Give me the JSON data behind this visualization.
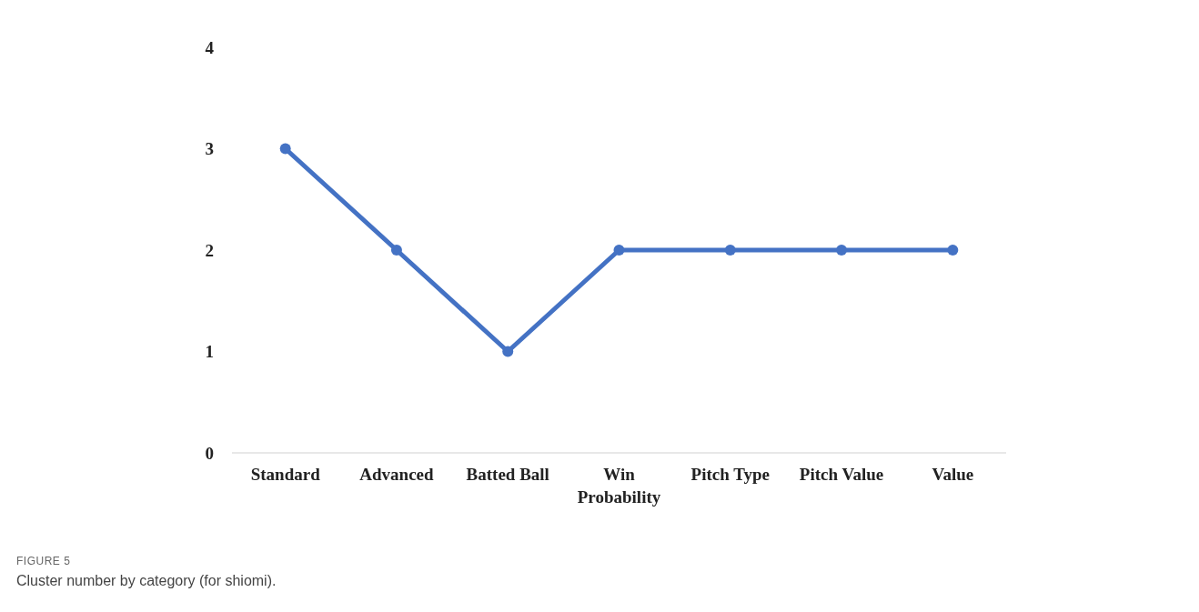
{
  "chart_data": {
    "type": "line",
    "categories": [
      "Standard",
      "Advanced",
      "Batted Ball",
      "Win Probability",
      "Pitch Type",
      "Pitch Value",
      "Value"
    ],
    "series": [
      {
        "color": "#4472c4",
        "values": [
          3,
          2,
          1,
          2,
          2,
          2,
          2
        ]
      }
    ],
    "ylim": [
      0,
      4
    ],
    "yticks": [
      0,
      1,
      2,
      3,
      4
    ],
    "grid": false,
    "legend": false,
    "marker": "circle",
    "line_style": "solid",
    "annotations": [
      "FIGURE 5",
      "Cluster number by category (for shiomi)."
    ]
  }
}
